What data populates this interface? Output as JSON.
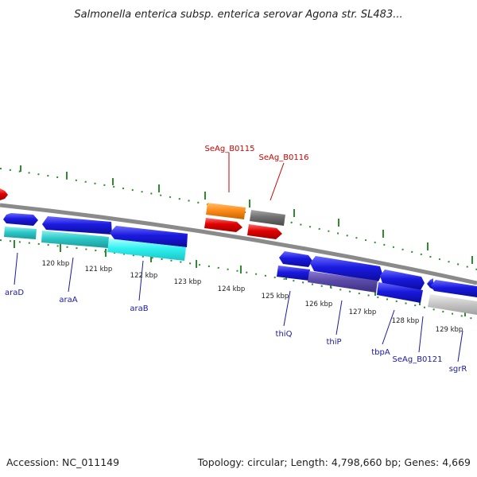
{
  "title": "Salmonella enterica subsp. enterica serovar Agona str. SL483...",
  "footer": {
    "accession": "Accession: NC_011149",
    "summary": "Topology: circular; Length: 4,798,660 bp; Genes: 4,669"
  },
  "kbp_labels": [
    "120 kbp",
    "121 kbp",
    "122 kbp",
    "123 kbp",
    "124 kbp",
    "125 kbp",
    "126 kbp",
    "127 kbp",
    "128 kbp",
    "129 kbp"
  ],
  "gene_labels": [
    {
      "id": "seag-b0115",
      "text": "SeAg_B0115",
      "color": "#cc0000"
    },
    {
      "id": "seag-b0116",
      "text": "SeAg_B0116",
      "color": "#cc0000"
    },
    {
      "id": "arad",
      "text": "araD",
      "color": "#1a1aa0"
    },
    {
      "id": "araa",
      "text": "araA",
      "color": "#1a1aa0"
    },
    {
      "id": "arab",
      "text": "araB",
      "color": "#1a1aa0"
    },
    {
      "id": "thiq",
      "text": "thiQ",
      "color": "#1a1aa0"
    },
    {
      "id": "thip",
      "text": "thiP",
      "color": "#1a1aa0"
    },
    {
      "id": "tbpa",
      "text": "tbpA",
      "color": "#1a1aa0"
    },
    {
      "id": "seag-b0121",
      "text": "SeAg_B0121",
      "color": "#1a1aa0"
    },
    {
      "id": "sgrr",
      "text": "sgrR",
      "color": "#1a1aa0"
    }
  ],
  "colors": {
    "backbone": "#8a8a8a",
    "tick": "#2e8b2e",
    "cds_forward": "#1a1ae0",
    "cds_forward_light": "#2f2ff5",
    "gene_cyan": "#2ec8c8",
    "gene_light_cyan": "#30f0f0",
    "gene_purple": "#5a4aa8",
    "gene_orange": "#ff8c1a",
    "gene_red": "#e00000",
    "gene_gray": "#707070",
    "gene_light_gray": "#c8c8c8",
    "label_blue": "#1a1aa0",
    "label_red": "#cc0000"
  }
}
